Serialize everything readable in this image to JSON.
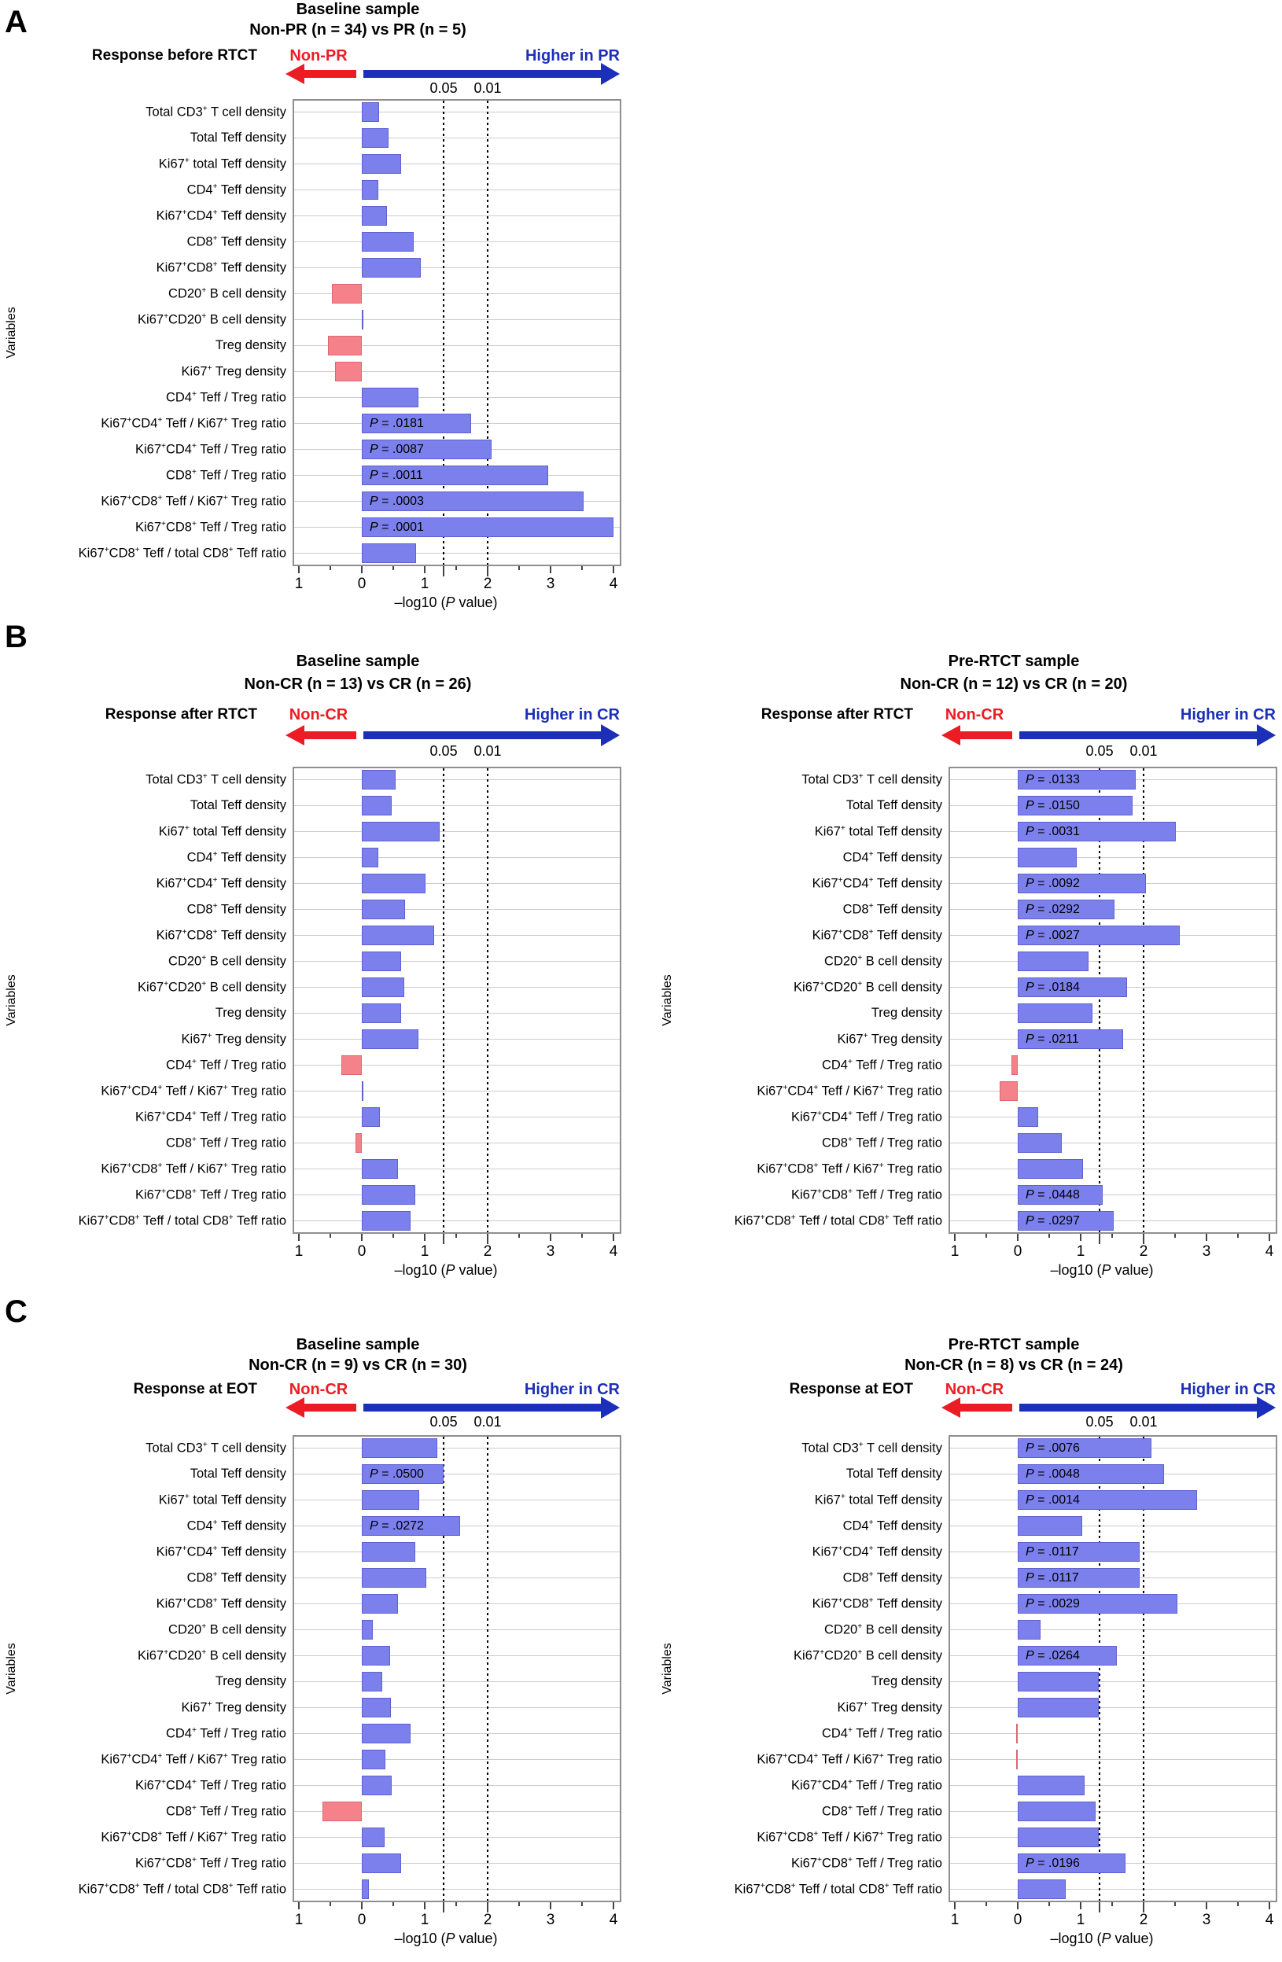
{
  "colors": {
    "bar_positive": "#7b80ed",
    "bar_negative": "#f5818b",
    "arrow_red": "#ec1c24",
    "arrow_blue": "#1c2fb8",
    "gridline": "#cccccc",
    "plot_border": "#8f8f8f"
  },
  "ylabel": "Variables",
  "panels": [
    {
      "label": "A",
      "response_label": "Response before RTCT",
      "chart_indexes": [
        0
      ]
    },
    {
      "label": "B",
      "response_label": "Response after RTCT",
      "chart_indexes": [
        1,
        2
      ]
    },
    {
      "label": "C",
      "response_label": "Response at EOT",
      "chart_indexes": [
        3,
        4
      ]
    }
  ],
  "chart_data": [
    {
      "type": "bar",
      "orientation": "horizontal",
      "title": "Baseline sample",
      "subtitle": "Non-PR (n = 34) vs PR (n = 5)",
      "left_arrow_label": "Non-PR",
      "right_arrow_label": "Higher in PR",
      "xlabel": "–log10 (*P* value)",
      "ylabel": "Variables",
      "xlim": [
        -1.1,
        4.13
      ],
      "x_ticks": [
        -1,
        0,
        1,
        2,
        3,
        4
      ],
      "x_tick_labels": [
        "1",
        "0",
        "1",
        "2",
        "3",
        "4"
      ],
      "thresholds": [
        {
          "label": "0.05",
          "value": 1.301
        },
        {
          "label": "0.01",
          "value": 2.0
        }
      ],
      "categories": [
        "Total CD3^+ T cell density",
        "Total Teff density",
        "Ki67^+ total Teff density",
        "CD4^+ Teff density",
        "Ki67^+CD4^+ Teff density",
        "CD8^+ Teff density",
        "Ki67^+CD8^+ Teff density",
        "CD20^+ B cell density",
        "Ki67^+CD20^+ B cell density",
        "Treg density",
        "Ki67^+ Treg density",
        "CD4^+ Teff / Treg ratio",
        "Ki67^+CD4^+ Teff / Ki67^+ Treg ratio",
        "Ki67^+CD4^+ Teff / Treg ratio",
        "CD8^+ Teff / Treg ratio",
        "Ki67^+CD8^+ Teff / Ki67^+ Treg ratio",
        "Ki67^+CD8^+ Teff / Treg ratio",
        "Ki67^+CD8^+ Teff / total CD8^+ Teff ratio"
      ],
      "values": [
        0.28,
        0.43,
        0.63,
        0.26,
        0.4,
        0.83,
        0.94,
        -0.48,
        0.03,
        -0.54,
        -0.43,
        0.9,
        1.742,
        2.06,
        2.959,
        3.523,
        4.0,
        0.86
      ],
      "p_labels": {
        "12": ".0181",
        "13": ".0087",
        "14": ".0011",
        "15": ".0003",
        "16": ".0001"
      }
    },
    {
      "type": "bar",
      "orientation": "horizontal",
      "title": "Baseline sample",
      "subtitle": "Non-CR (n = 13) vs CR (n = 26)",
      "left_arrow_label": "Non-CR",
      "right_arrow_label": "Higher in CR",
      "xlabel": "–log10 (*P* value)",
      "ylabel": "Variables",
      "xlim": [
        -1.1,
        4.13
      ],
      "x_ticks": [
        -1,
        0,
        1,
        2,
        3,
        4
      ],
      "x_tick_labels": [
        "1",
        "0",
        "1",
        "2",
        "3",
        "4"
      ],
      "thresholds": [
        {
          "label": "0.05",
          "value": 1.301
        },
        {
          "label": "0.01",
          "value": 2.0
        }
      ],
      "categories": [
        "Total CD3^+ T cell density",
        "Total Teff density",
        "Ki67^+ total Teff density",
        "CD4^+ Teff density",
        "Ki67^+CD4^+ Teff density",
        "CD8^+ Teff density",
        "Ki67^+CD8^+ Teff density",
        "CD20^+ B cell density",
        "Ki67^+CD20^+ B cell density",
        "Treg density",
        "Ki67^+ Treg density",
        "CD4^+ Teff / Treg ratio",
        "Ki67^+CD4^+ Teff / Ki67^+ Treg ratio",
        "Ki67^+CD4^+ Teff / Treg ratio",
        "CD8^+ Teff / Treg ratio",
        "Ki67^+CD8^+ Teff / Ki67^+ Treg ratio",
        "Ki67^+CD8^+ Teff / Treg ratio",
        "Ki67^+CD8^+ Teff / total CD8^+ Teff ratio"
      ],
      "values": [
        0.54,
        0.48,
        1.24,
        0.26,
        1.01,
        0.69,
        1.15,
        0.63,
        0.67,
        0.62,
        0.9,
        -0.33,
        0.02,
        0.29,
        -0.1,
        0.57,
        0.85,
        0.78
      ],
      "p_labels": {}
    },
    {
      "type": "bar",
      "orientation": "horizontal",
      "title": "Pre-RTCT sample",
      "subtitle": "Non-CR (n = 12) vs CR (n = 20)",
      "left_arrow_label": "Non-CR",
      "right_arrow_label": "Higher in CR",
      "xlabel": "–log10 (*P* value)",
      "ylabel": "Variables",
      "xlim": [
        -1.1,
        4.13
      ],
      "x_ticks": [
        -1,
        0,
        1,
        2,
        3,
        4
      ],
      "x_tick_labels": [
        "1",
        "0",
        "1",
        "2",
        "3",
        "4"
      ],
      "thresholds": [
        {
          "label": "0.05",
          "value": 1.301
        },
        {
          "label": "0.01",
          "value": 2.0
        }
      ],
      "categories": [
        "Total CD3^+ T cell density",
        "Total Teff density",
        "Ki67^+ total Teff density",
        "CD4^+ Teff density",
        "Ki67^+CD4^+ Teff density",
        "CD8^+ Teff density",
        "Ki67^+CD8^+ Teff density",
        "CD20^+ B cell density",
        "Ki67^+CD20^+ B cell density",
        "Treg density",
        "Ki67^+ Treg density",
        "CD4^+ Teff / Treg ratio",
        "Ki67^+CD4^+ Teff / Ki67^+ Treg ratio",
        "Ki67^+CD4^+ Teff / Treg ratio",
        "CD8^+ Teff / Treg ratio",
        "Ki67^+CD8^+ Teff / Ki67^+ Treg ratio",
        "Ki67^+CD8^+ Teff / Treg ratio",
        "Ki67^+CD8^+ Teff / total CD8^+ Teff ratio"
      ],
      "values": [
        1.876,
        1.824,
        2.509,
        0.94,
        2.036,
        1.535,
        2.569,
        1.13,
        1.735,
        1.19,
        1.676,
        -0.1,
        -0.29,
        0.33,
        0.7,
        1.04,
        1.349,
        1.527
      ],
      "p_labels": {
        "0": ".0133",
        "1": ".0150",
        "2": ".0031",
        "4": ".0092",
        "5": ".0292",
        "6": ".0027",
        "8": ".0184",
        "10": ".0211",
        "16": ".0448",
        "17": ".0297"
      }
    },
    {
      "type": "bar",
      "orientation": "horizontal",
      "title": "Baseline sample",
      "subtitle": "Non-CR (n = 9) vs CR (n = 30)",
      "left_arrow_label": "Non-CR",
      "right_arrow_label": "Higher in CR",
      "xlabel": "–log10 (*P* value)",
      "ylabel": "Variables",
      "xlim": [
        -1.1,
        4.13
      ],
      "x_ticks": [
        -1,
        0,
        1,
        2,
        3,
        4
      ],
      "x_tick_labels": [
        "1",
        "0",
        "1",
        "2",
        "3",
        "4"
      ],
      "thresholds": [
        {
          "label": "0.05",
          "value": 1.301
        },
        {
          "label": "0.01",
          "value": 2.0
        }
      ],
      "categories": [
        "Total CD3^+ T cell density",
        "Total Teff density",
        "Ki67^+ total Teff density",
        "CD4^+ Teff density",
        "Ki67^+CD4^+ Teff density",
        "CD8^+ Teff density",
        "Ki67^+CD8^+ Teff density",
        "CD20^+ B cell density",
        "Ki67^+CD20^+ B cell density",
        "Treg density",
        "Ki67^+ Treg density",
        "CD4^+ Teff / Treg ratio",
        "Ki67^+CD4^+ Teff / Ki67^+ Treg ratio",
        "Ki67^+CD4^+ Teff / Treg ratio",
        "CD8^+ Teff / Treg ratio",
        "Ki67^+CD8^+ Teff / Ki67^+ Treg ratio",
        "Ki67^+CD8^+ Teff / Treg ratio",
        "Ki67^+CD8^+ Teff / total CD8^+ Teff ratio"
      ],
      "values": [
        1.2,
        1.301,
        0.91,
        1.565,
        0.85,
        1.03,
        0.57,
        0.17,
        0.45,
        0.33,
        0.46,
        0.78,
        0.38,
        0.47,
        -0.63,
        0.36,
        0.63,
        0.11
      ],
      "p_labels": {
        "1": ".0500",
        "3": ".0272"
      }
    },
    {
      "type": "bar",
      "orientation": "horizontal",
      "title": "Pre-RTCT sample",
      "subtitle": "Non-CR (n = 8) vs CR (n = 24)",
      "left_arrow_label": "Non-CR",
      "right_arrow_label": "Higher in CR",
      "xlabel": "–log10 (*P* value)",
      "ylabel": "Variables",
      "xlim": [
        -1.1,
        4.13
      ],
      "x_ticks": [
        -1,
        0,
        1,
        2,
        3,
        4
      ],
      "x_tick_labels": [
        "1",
        "0",
        "1",
        "2",
        "3",
        "4"
      ],
      "thresholds": [
        {
          "label": "0.05",
          "value": 1.301
        },
        {
          "label": "0.01",
          "value": 2.0
        }
      ],
      "categories": [
        "Total CD3^+ T cell density",
        "Total Teff density",
        "Ki67^+ total Teff density",
        "CD4^+ Teff density",
        "Ki67^+CD4^+ Teff density",
        "CD8^+ Teff density",
        "Ki67^+CD8^+ Teff density",
        "CD20^+ B cell density",
        "Ki67^+CD20^+ B cell density",
        "Treg density",
        "Ki67^+ Treg density",
        "CD4^+ Teff / Treg ratio",
        "Ki67^+CD4^+ Teff / Ki67^+ Treg ratio",
        "Ki67^+CD4^+ Teff / Treg ratio",
        "CD8^+ Teff / Treg ratio",
        "Ki67^+CD8^+ Teff / Ki67^+ Treg ratio",
        "Ki67^+CD8^+ Teff / Treg ratio",
        "Ki67^+CD8^+ Teff / total CD8^+ Teff ratio"
      ],
      "values": [
        2.119,
        2.319,
        2.854,
        1.02,
        1.932,
        1.932,
        2.538,
        0.36,
        1.578,
        1.29,
        1.29,
        -0.02,
        -0.03,
        1.06,
        1.24,
        1.29,
        1.708,
        0.76
      ],
      "p_labels": {
        "0": ".0076",
        "1": ".0048",
        "2": ".0014",
        "4": ".0117",
        "5": ".0117",
        "6": ".0029",
        "8": ".0264",
        "16": ".0196"
      }
    }
  ]
}
